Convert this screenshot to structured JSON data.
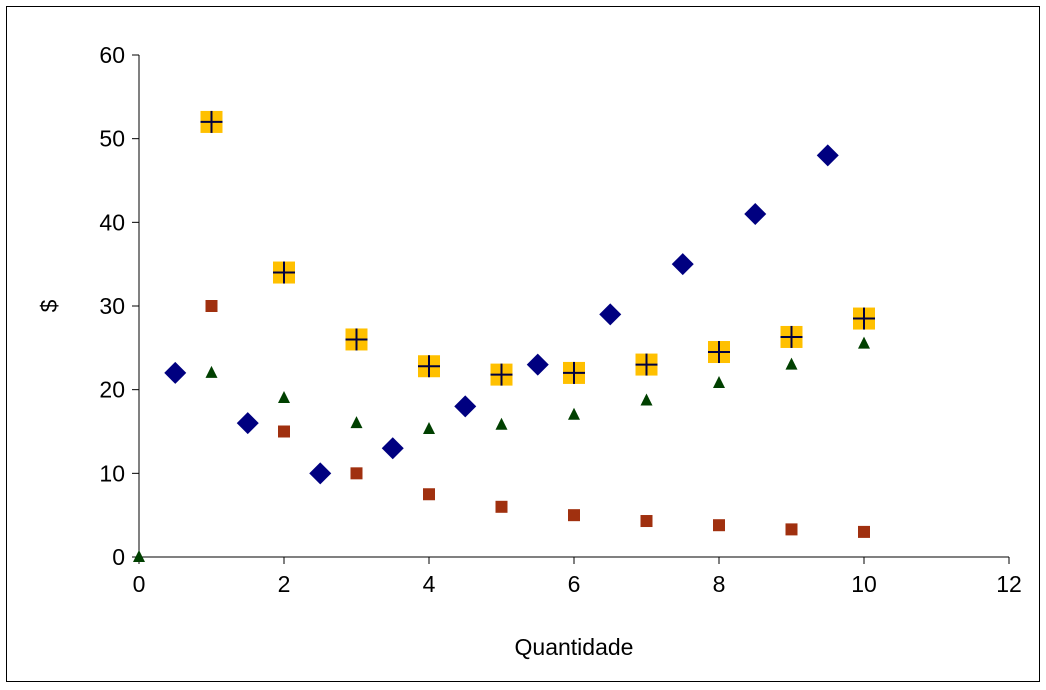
{
  "chart_data": {
    "type": "scatter",
    "title": "",
    "xlabel": "Quantidade",
    "ylabel": "$",
    "xlim": [
      0,
      12
    ],
    "ylim": [
      0,
      60
    ],
    "x_ticks": [
      "0",
      "2",
      "4",
      "6",
      "8",
      "10",
      "12"
    ],
    "y_ticks": [
      "0",
      "10",
      "20",
      "30",
      "40",
      "50",
      "60"
    ],
    "grid": false,
    "legend": "none",
    "series": [
      {
        "marker": "diamond",
        "color": "#000080",
        "x": [
          0.5,
          1.5,
          2.5,
          3.5,
          4.5,
          5.5,
          6.5,
          7.5,
          8.5,
          9.5
        ],
        "y": [
          22,
          16,
          10,
          13,
          18,
          23,
          29,
          35,
          41,
          48
        ]
      },
      {
        "marker": "square",
        "color": "#A0300F",
        "x": [
          1,
          2,
          3,
          4,
          5,
          6,
          7,
          8,
          9,
          10
        ],
        "y": [
          30,
          15,
          10,
          7.5,
          6,
          5,
          4.3,
          3.8,
          3.3,
          3
        ]
      },
      {
        "marker": "triangle",
        "color": "#004000",
        "x": [
          0,
          1,
          2,
          3,
          4,
          5,
          6,
          7,
          8,
          9,
          10
        ],
        "y": [
          0,
          22,
          19,
          16,
          15.3,
          15.8,
          17,
          18.7,
          20.8,
          23,
          25.5
        ]
      },
      {
        "marker": "cross-square",
        "color": "#FFC000",
        "cross_color": "#000040",
        "x": [
          1,
          2,
          3,
          4,
          5,
          6,
          7,
          8,
          9,
          10
        ],
        "y": [
          52,
          34,
          26,
          22.8,
          21.8,
          22,
          23,
          24.5,
          26.3,
          28.5
        ]
      }
    ]
  }
}
